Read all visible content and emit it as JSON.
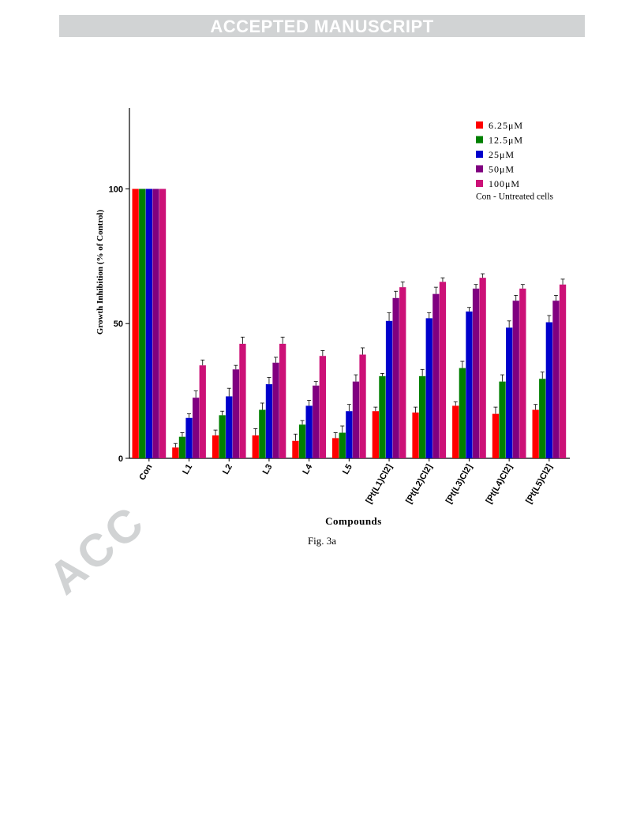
{
  "header": {
    "banner_text": "ACCEPTED MANUSCRIPT"
  },
  "watermark": {
    "text": "ACC"
  },
  "figure": {
    "caption": "Fig. 3a"
  },
  "chart_data": {
    "type": "bar",
    "title": "",
    "xlabel": "Compounds",
    "ylabel": "Growth Inhibition (% of Control)",
    "ylim": [
      0,
      130
    ],
    "yticks": [
      0,
      50,
      100
    ],
    "grid": false,
    "legend_position": "top-right",
    "legend_note": "Con - Untreated cells",
    "categories": [
      "Con",
      "L1",
      "L2",
      "L3",
      "L4",
      "L5",
      "[Pt(L1)Cl2]",
      "[Pt(L2)Cl2]",
      "[Pt(L3)Cl2]",
      "[Pt(L4)Cl2]",
      "[Pt(L5)Cl2]"
    ],
    "series": [
      {
        "name": "6.25μM",
        "color": "#ff0000",
        "values": [
          100,
          4,
          8.5,
          8.5,
          6.5,
          7.5,
          17.5,
          17,
          19.5,
          16.5,
          18
        ],
        "errors": [
          0,
          1.5,
          2,
          2.5,
          2.5,
          2,
          1.5,
          2,
          1.5,
          2.5,
          2
        ]
      },
      {
        "name": "12.5μM",
        "color": "#008000",
        "values": [
          100,
          8,
          16,
          18,
          12.5,
          9.5,
          30.5,
          30.5,
          33.5,
          28.5,
          29.5
        ],
        "errors": [
          0,
          1.5,
          1.5,
          2.5,
          1.5,
          2.5,
          1,
          2.5,
          2.5,
          2.5,
          2.5
        ]
      },
      {
        "name": "25μM",
        "color": "#0000cc",
        "values": [
          100,
          15,
          23,
          27.5,
          19.5,
          17.5,
          51,
          52,
          54.5,
          48.5,
          50.5
        ],
        "errors": [
          0,
          1.5,
          3,
          2.5,
          2,
          2.5,
          3,
          2,
          1.5,
          2.5,
          2.5
        ]
      },
      {
        "name": "50μM",
        "color": "#800080",
        "values": [
          100,
          22.5,
          33,
          35.5,
          27,
          28.5,
          59.5,
          61,
          63,
          58.5,
          58.5
        ],
        "errors": [
          0,
          2.5,
          1.5,
          2,
          1.5,
          2.5,
          2.5,
          2.5,
          1.5,
          2,
          2
        ]
      },
      {
        "name": "100μM",
        "color": "#cc1177",
        "values": [
          100,
          34.5,
          42.5,
          42.5,
          38,
          38.5,
          63.5,
          65.5,
          67,
          63,
          64.5
        ],
        "errors": [
          0,
          2,
          2.5,
          2.5,
          2,
          2.5,
          2,
          1.5,
          1.5,
          1.5,
          2
        ]
      }
    ]
  }
}
